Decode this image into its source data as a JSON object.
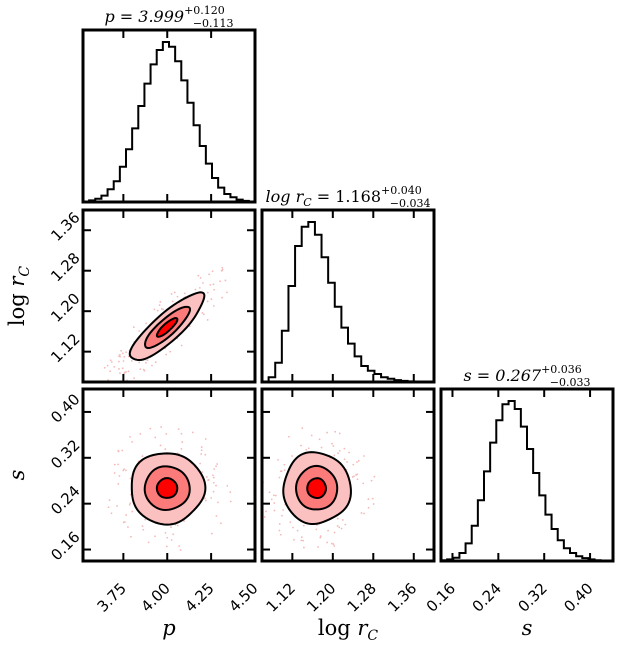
{
  "chart_data": {
    "type": "corner",
    "parameters": [
      {
        "id": "p",
        "label": "p",
        "median": 3.999,
        "err_plus": 0.12,
        "err_minus": 0.113,
        "range": [
          3.52,
          4.5
        ],
        "ticks": [
          3.75,
          4.0,
          4.25,
          4.5
        ],
        "tick_labels": [
          "3.75",
          "4.00",
          "4.25",
          "4.50"
        ],
        "title_text": "p = 3.999",
        "title_sup": "+0.120",
        "title_sub": "−0.113"
      },
      {
        "id": "logrc",
        "label": "log r_C",
        "label_display": "log r",
        "label_sub": "C",
        "median": 1.168,
        "err_plus": 0.04,
        "err_minus": 0.034,
        "range": [
          1.06,
          1.4
        ],
        "ticks": [
          1.12,
          1.2,
          1.28,
          1.36
        ],
        "tick_labels": [
          "1.12",
          "1.20",
          "1.28",
          "1.36"
        ],
        "title_text": "log r",
        "title_text_sub": "C",
        "title_value": " = 1.168",
        "title_sup": "+0.040",
        "title_sub": "−0.034"
      },
      {
        "id": "s",
        "label": "s",
        "median": 0.267,
        "err_plus": 0.036,
        "err_minus": 0.033,
        "range": [
          0.14,
          0.44
        ],
        "ticks": [
          0.16,
          0.24,
          0.32,
          0.4
        ],
        "tick_labels": [
          "0.16",
          "0.24",
          "0.32",
          "0.40"
        ],
        "title_text": "s = 0.267",
        "title_sup": "+0.036",
        "title_sub": "−0.033"
      }
    ],
    "histograms": {
      "p": [
        0.0,
        0.01,
        0.02,
        0.04,
        0.08,
        0.13,
        0.22,
        0.33,
        0.46,
        0.6,
        0.74,
        0.86,
        0.95,
        1.0,
        0.97,
        0.88,
        0.76,
        0.62,
        0.48,
        0.35,
        0.24,
        0.15,
        0.09,
        0.05,
        0.03,
        0.015,
        0.007,
        0.003
      ],
      "logrc": [
        0.0,
        0.03,
        0.12,
        0.32,
        0.6,
        0.85,
        0.97,
        1.0,
        0.92,
        0.78,
        0.62,
        0.47,
        0.34,
        0.24,
        0.16,
        0.1,
        0.07,
        0.05,
        0.03,
        0.02,
        0.012,
        0.007,
        0.004,
        0.002,
        0.001,
        0.0
      ],
      "s": [
        0.005,
        0.01,
        0.02,
        0.05,
        0.11,
        0.22,
        0.38,
        0.56,
        0.74,
        0.88,
        0.98,
        1.0,
        0.95,
        0.84,
        0.7,
        0.55,
        0.41,
        0.29,
        0.2,
        0.13,
        0.08,
        0.05,
        0.03,
        0.018,
        0.01,
        0.005,
        0.003,
        0.001
      ]
    },
    "pairs": [
      {
        "x": "p",
        "y": "logrc",
        "correlation": 0.85
      },
      {
        "x": "p",
        "y": "s",
        "correlation": 0.0
      },
      {
        "x": "logrc",
        "y": "s",
        "correlation": 0.0
      }
    ],
    "contour_levels": [
      0.5,
      1.1,
      1.8
    ],
    "contour_colors": [
      "#ff0000",
      "#fb7b7b",
      "#fbc0c0"
    ]
  }
}
